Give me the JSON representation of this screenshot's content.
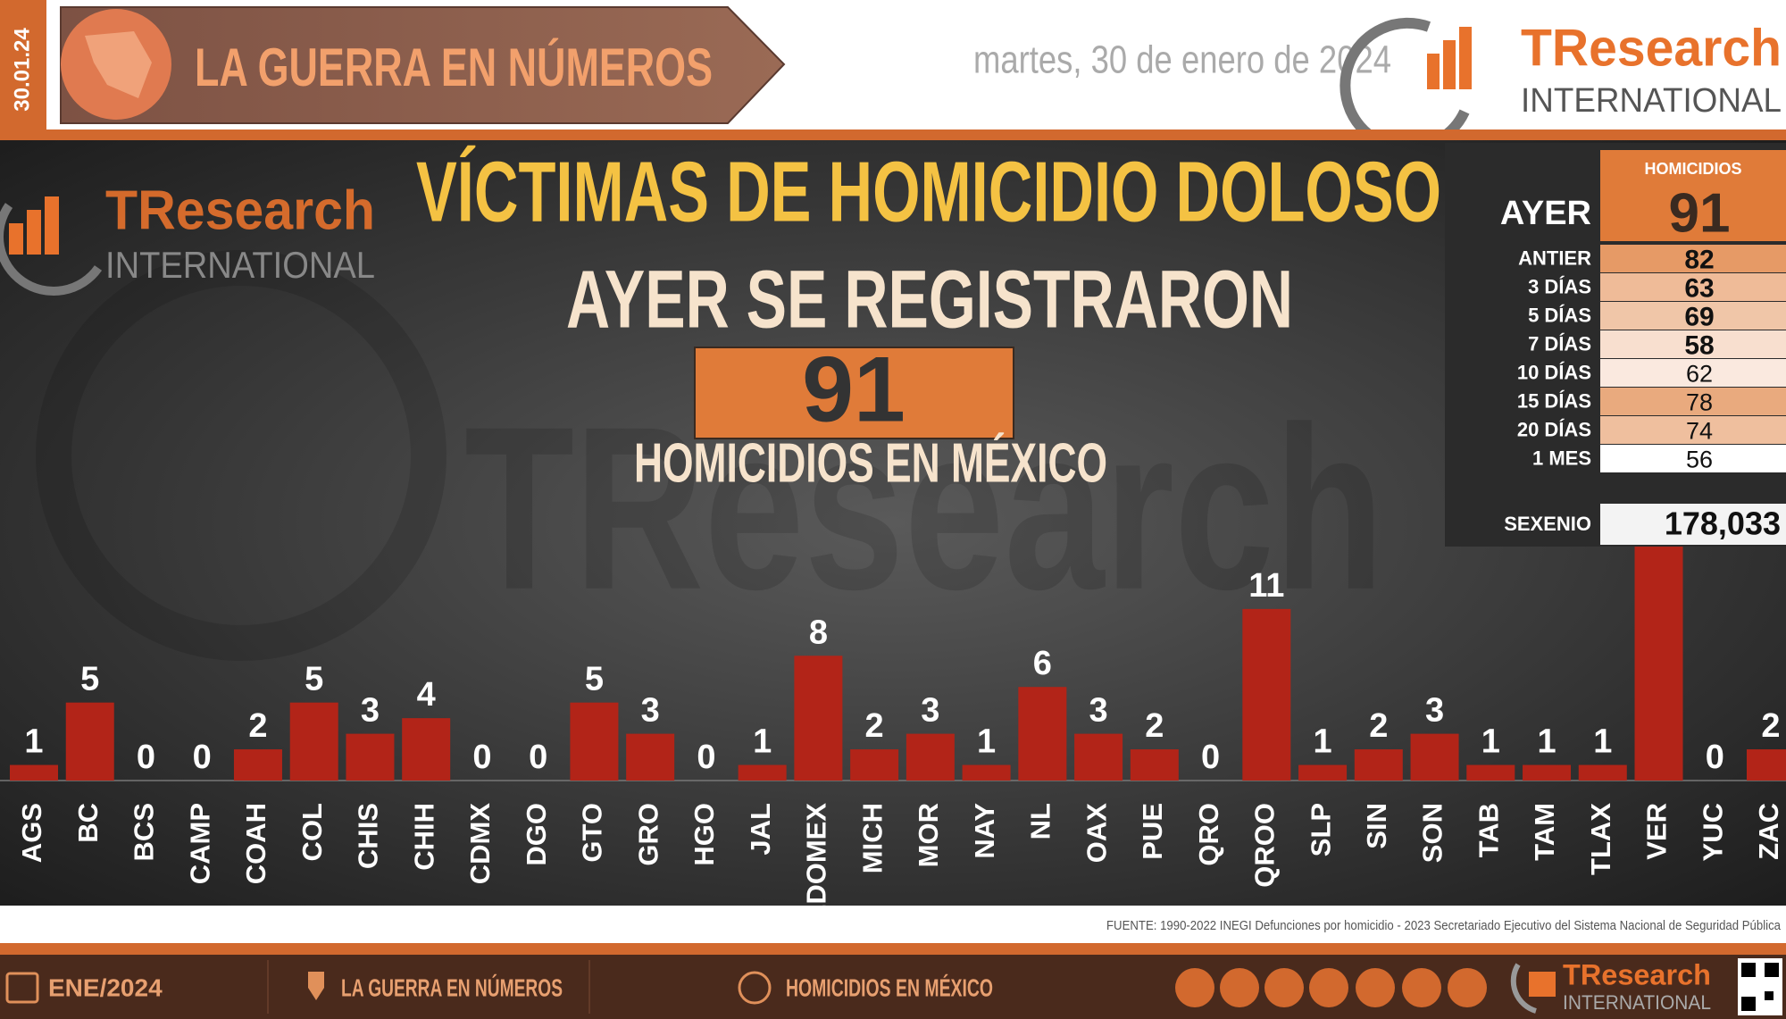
{
  "header": {
    "date_tag": "30.01.24",
    "title": "LA GUERRA EN NÚMEROS",
    "date": "martes, 30 de enero de 2024",
    "logo_name": "TResearch",
    "logo_sub": "INTERNATIONAL"
  },
  "headline": {
    "title": "VÍCTIMAS DE HOMICIDIO DOLOSO",
    "lead": "AYER SE REGISTRARON",
    "total": 91,
    "subtitle": "HOMICIDIOS EN MÉXICO",
    "watermark": "TResearch"
  },
  "summary": {
    "header": "HOMICIDIOS",
    "rows": [
      {
        "label": "AYER",
        "value": 91,
        "color": "#e07b39"
      },
      {
        "label": "ANTIER",
        "value": 82,
        "color": "#e69a66"
      },
      {
        "label": "3 DÍAS",
        "value": 63,
        "color": "#efbb98"
      },
      {
        "label": "5 DÍAS",
        "value": 69,
        "color": "#f0c6a8"
      },
      {
        "label": "7 DÍAS",
        "value": 58,
        "color": "#f8dfcf"
      },
      {
        "label": "10 DÍAS",
        "value": 62,
        "color": "#fae9df"
      },
      {
        "label": "15 DÍAS",
        "value": 78,
        "color": "#e9aa7e"
      },
      {
        "label": "20 DÍAS",
        "value": 74,
        "color": "#efbf9e"
      },
      {
        "label": "1 MES",
        "value": 56,
        "color": "#ffffff"
      }
    ],
    "sexenio": {
      "label": "SEXENIO",
      "value": "178,033"
    }
  },
  "chart_data": {
    "type": "bar",
    "color": "#b22418",
    "categories": [
      "AGS",
      "BC",
      "BCS",
      "CAMP",
      "COAH",
      "COL",
      "CHIS",
      "CHIH",
      "CDMX",
      "DGO",
      "GTO",
      "GRO",
      "HGO",
      "JAL",
      "EDOMEX",
      "MICH",
      "MOR",
      "NAY",
      "NL",
      "OAX",
      "PUE",
      "QRO",
      "QROO",
      "SLP",
      "SIN",
      "SON",
      "TAB",
      "TAM",
      "TLAX",
      "VER",
      "YUC",
      "ZAC"
    ],
    "values": [
      1,
      5,
      0,
      0,
      2,
      5,
      3,
      4,
      0,
      0,
      5,
      3,
      0,
      1,
      8,
      2,
      3,
      1,
      6,
      3,
      2,
      0,
      11,
      1,
      2,
      3,
      1,
      1,
      1,
      15,
      0,
      2
    ],
    "ylim": [
      0,
      15
    ]
  },
  "source": "FUENTE: 1990-2022 INEGI Defunciones por homicidio - 2023 Secretariado Ejecutivo del Sistema Nacional de Seguridad Pública",
  "footer": {
    "items": [
      "ENE/2024",
      "LA GUERRA EN NÚMEROS",
      "HOMICIDIOS EN MÉXICO"
    ]
  }
}
